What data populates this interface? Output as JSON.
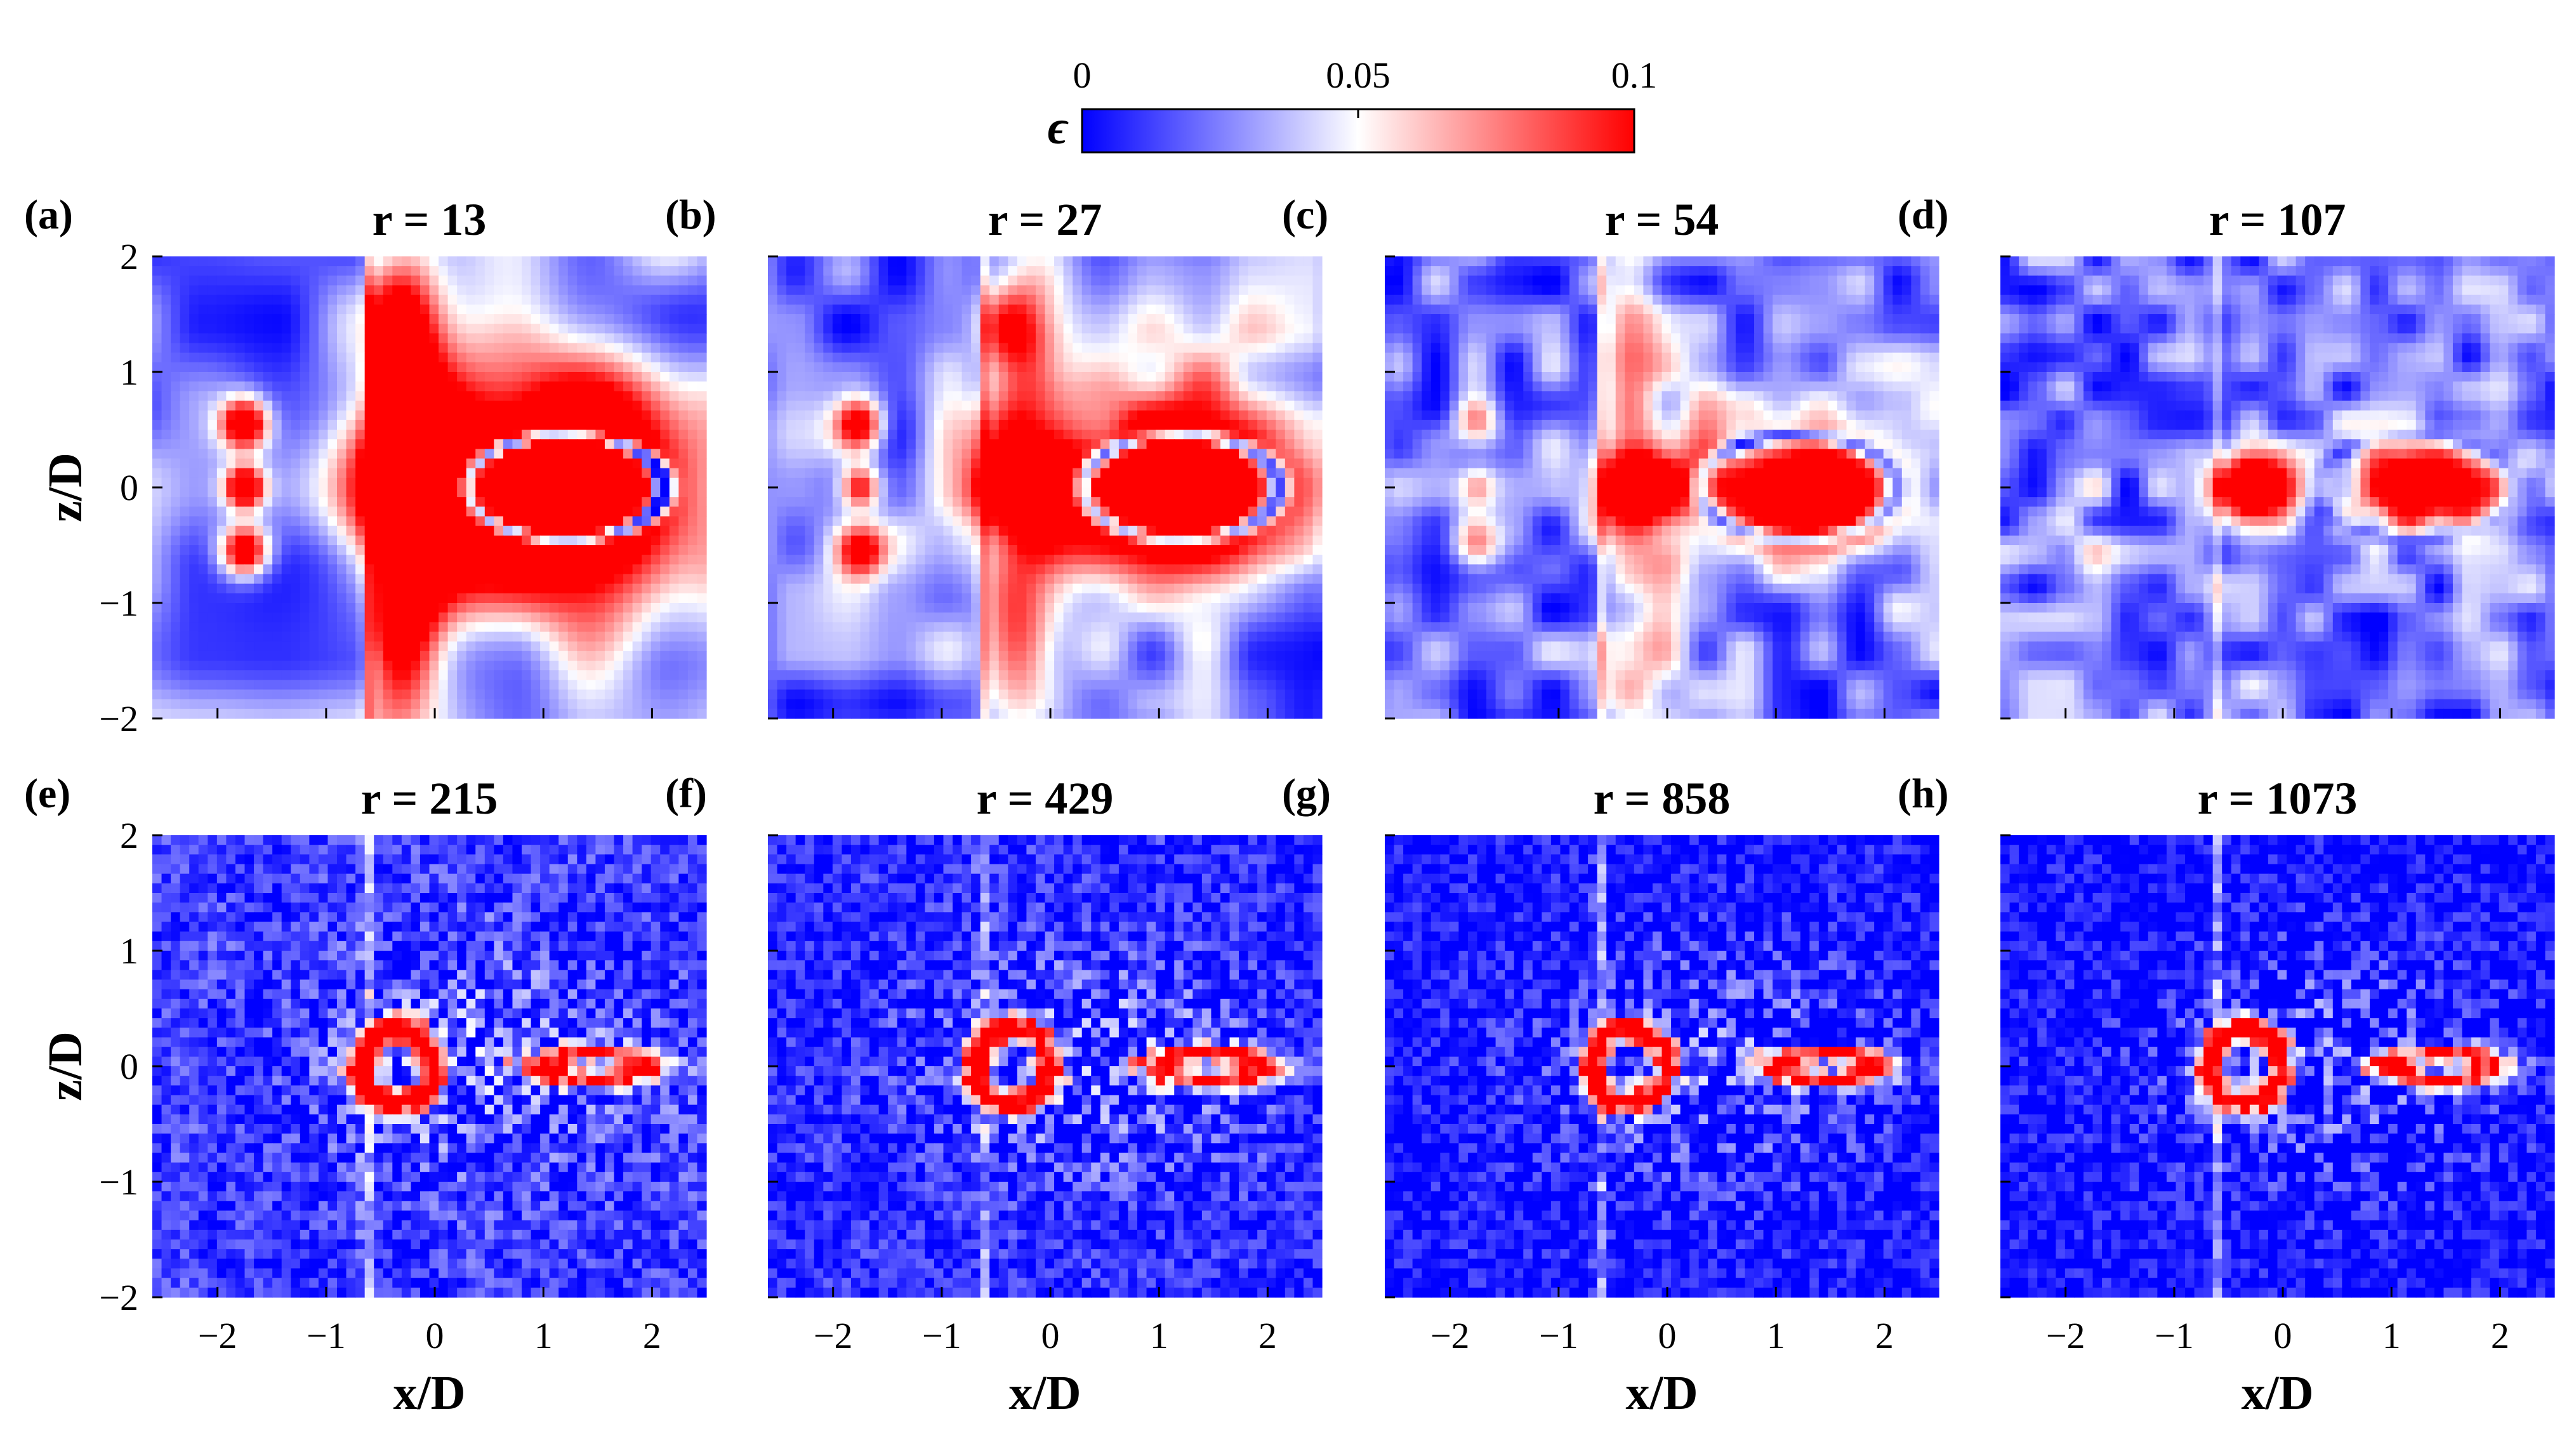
{
  "chart_data": {
    "type": "heatmap",
    "colorbar": {
      "symbol": "ϵ",
      "range": [
        0,
        0.1
      ],
      "ticks": [
        0,
        0.05,
        0.1
      ],
      "tick_labels": [
        "0",
        "0.05",
        "0.1"
      ],
      "colors": {
        "low": "#0000ff",
        "mid": "#ffffff",
        "high": "#ff0000"
      },
      "placement": "top-center"
    },
    "x_axis": {
      "label": "x/D",
      "range": [
        -2.6,
        2.5
      ],
      "ticks": [
        -2,
        -1,
        0,
        1,
        2
      ],
      "tick_labels": [
        "−2",
        "−1",
        "0",
        "1",
        "2"
      ]
    },
    "y_axis": {
      "label": "z/D",
      "range": [
        -2,
        2
      ],
      "ticks": [
        2,
        1,
        0,
        -1,
        -2
      ],
      "tick_labels": [
        "2",
        "1",
        "0",
        "−1",
        "−2"
      ]
    },
    "panels": [
      {
        "letter": "(a)",
        "title": "r = 13",
        "r": 13
      },
      {
        "letter": "(b)",
        "title": "r = 27",
        "r": 27
      },
      {
        "letter": "(c)",
        "title": "r = 54",
        "r": 54
      },
      {
        "letter": "(d)",
        "title": "r = 107",
        "r": 107
      },
      {
        "letter": "(e)",
        "title": "r = 215",
        "r": 215
      },
      {
        "letter": "(f)",
        "title": "r = 429",
        "r": 429
      },
      {
        "letter": "(g)",
        "title": "r = 858",
        "r": 858
      },
      {
        "letter": "(h)",
        "title": "r = 1073",
        "r": 1073
      }
    ]
  }
}
